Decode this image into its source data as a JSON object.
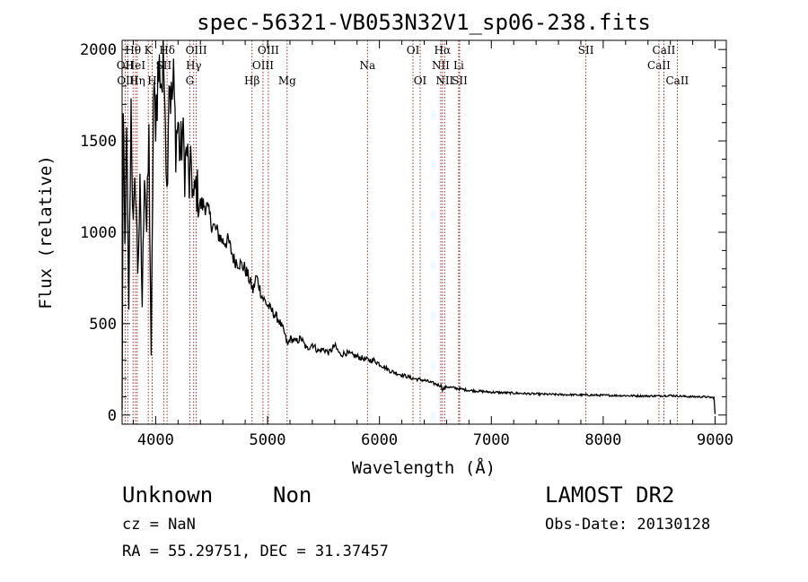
{
  "chart_data": {
    "type": "line",
    "title": "spec-56321-VB053N32V1_sp06-238.fits",
    "xlabel": "Wavelength (Å)",
    "ylabel": "Flux (relative)",
    "xlim": [
      3700,
      9100
    ],
    "ylim": [
      -50,
      2050
    ],
    "x_ticks": [
      4000,
      5000,
      6000,
      7000,
      8000,
      9000
    ],
    "y_ticks": [
      0,
      500,
      1000,
      1500,
      2000
    ],
    "grid": false,
    "legend": "none",
    "series": [
      {
        "color": "#000000",
        "x": [
          3700,
          3710,
          3725,
          3740,
          3760,
          3780,
          3800,
          3820,
          3840,
          3860,
          3880,
          3900,
          3920,
          3940,
          3960,
          3980,
          4000,
          4020,
          4040,
          4060,
          4080,
          4100,
          4120,
          4140,
          4160,
          4180,
          4200,
          4220,
          4240,
          4260,
          4280,
          4300,
          4320,
          4340,
          4360,
          4380,
          4400,
          4450,
          4500,
          4550,
          4600,
          4650,
          4700,
          4750,
          4800,
          4850,
          4870,
          4900,
          4950,
          5000,
          5050,
          5100,
          5150,
          5180,
          5200,
          5250,
          5300,
          5350,
          5400,
          5450,
          5500,
          5550,
          5600,
          5650,
          5700,
          5750,
          5800,
          5850,
          5900,
          5950,
          6000,
          6050,
          6100,
          6150,
          6200,
          6250,
          6300,
          6350,
          6400,
          6450,
          6500,
          6550,
          6563,
          6600,
          6650,
          6700,
          6750,
          6800,
          6900,
          7000,
          7200,
          7400,
          7600,
          7800,
          8000,
          8200,
          8400,
          8500,
          8600,
          8700,
          8800,
          8900,
          8990,
          9000
        ],
        "y": [
          30,
          1600,
          900,
          1500,
          600,
          1700,
          1000,
          1300,
          800,
          1200,
          600,
          1400,
          1000,
          1500,
          300,
          1700,
          1650,
          1850,
          1900,
          1800,
          1950,
          1200,
          1900,
          1700,
          1800,
          1500,
          1600,
          1400,
          1550,
          1350,
          1450,
          1250,
          1350,
          1150,
          1250,
          1200,
          1150,
          1150,
          1050,
          1000,
          950,
          950,
          850,
          830,
          800,
          720,
          680,
          760,
          650,
          600,
          560,
          520,
          450,
          380,
          420,
          400,
          420,
          360,
          390,
          350,
          360,
          340,
          380,
          330,
          340,
          330,
          320,
          310,
          300,
          300,
          280,
          260,
          240,
          230,
          220,
          210,
          200,
          195,
          190,
          180,
          170,
          160,
          140,
          155,
          150,
          145,
          140,
          135,
          130,
          125,
          120,
          115,
          112,
          110,
          108,
          106,
          104,
          105,
          107,
          103,
          100,
          100,
          95,
          5
        ]
      }
    ],
    "lines": [
      {
        "label": "Hθ",
        "x": 3798,
        "row": 0
      },
      {
        "label": "OII",
        "x": 3727,
        "row": 1
      },
      {
        "label": "OIII",
        "x": 3750,
        "row": 2
      },
      {
        "label": "HeI",
        "x": 3820,
        "row": 1
      },
      {
        "label": "Hη",
        "x": 3835,
        "row": 2
      },
      {
        "label": "K",
        "x": 3934,
        "row": 0
      },
      {
        "label": "SII",
        "x": 4072,
        "row": 1
      },
      {
        "label": "H",
        "x": 3969,
        "row": 2
      },
      {
        "label": "Hδ",
        "x": 4102,
        "row": 0
      },
      {
        "label": "OIII",
        "x": 4363,
        "row": 0
      },
      {
        "label": "Hγ",
        "x": 4340,
        "row": 1
      },
      {
        "label": "G",
        "x": 4305,
        "row": 2
      },
      {
        "label": "Hβ",
        "x": 4861,
        "row": 2
      },
      {
        "label": "OIII",
        "x": 5007,
        "row": 0
      },
      {
        "label": "OIII",
        "x": 4959,
        "row": 1
      },
      {
        "label": "Mg",
        "x": 5175,
        "row": 2
      },
      {
        "label": "Na",
        "x": 5893,
        "row": 1
      },
      {
        "label": "OI",
        "x": 6300,
        "row": 0
      },
      {
        "label": "OI",
        "x": 6364,
        "row": 2
      },
      {
        "label": "Hα",
        "x": 6563,
        "row": 0
      },
      {
        "label": "NII",
        "x": 6548,
        "row": 1
      },
      {
        "label": "NII",
        "x": 6583,
        "row": 2
      },
      {
        "label": "Li",
        "x": 6708,
        "row": 1
      },
      {
        "label": "SII",
        "x": 6717,
        "row": 2
      },
      {
        "label": "SII",
        "x": 7845,
        "row": 0
      },
      {
        "label": "CaII",
        "x": 8542,
        "row": 0
      },
      {
        "label": "CaII",
        "x": 8498,
        "row": 1
      },
      {
        "label": "CaII",
        "x": 8662,
        "row": 2
      }
    ]
  },
  "info": {
    "class": "Unknown",
    "subclass": "Non",
    "survey": "LAMOST DR2",
    "cz": "cz = NaN",
    "obs_date": "Obs-Date: 20130128",
    "radec": "RA =  55.29751, DEC =  31.37457"
  }
}
